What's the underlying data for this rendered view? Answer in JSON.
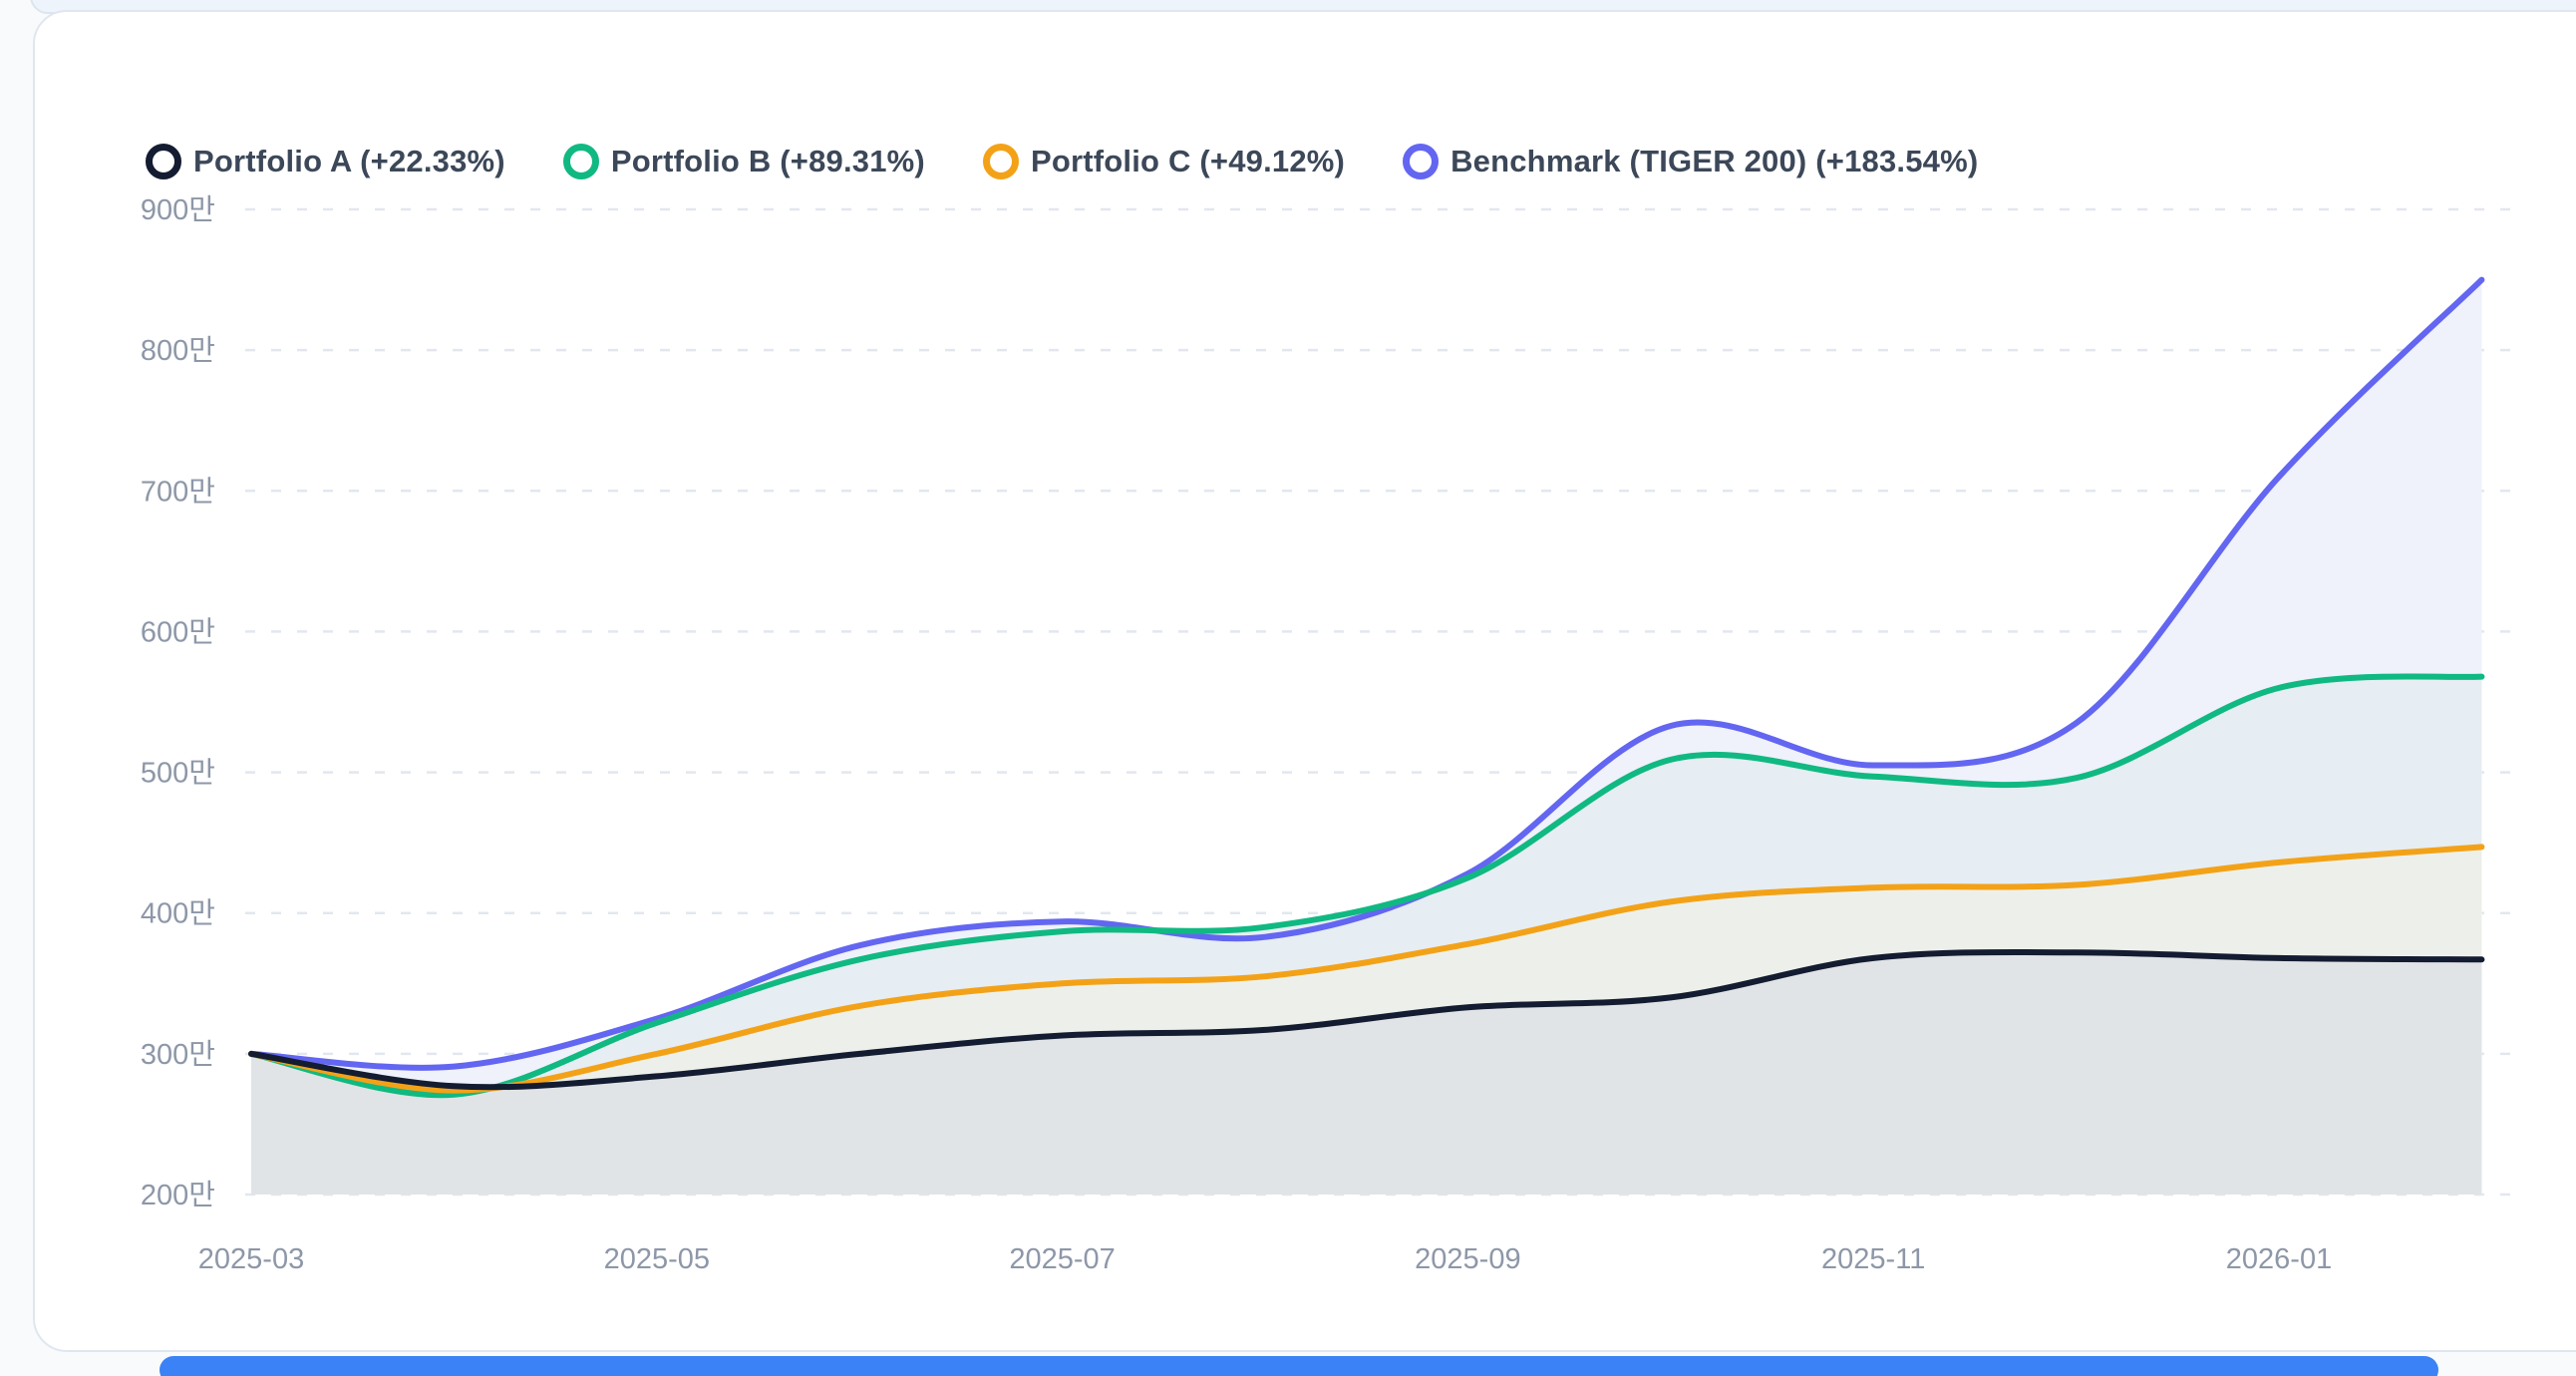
{
  "page": {
    "background": "#f9fafc",
    "card_background": "#ffffff",
    "card_border": "#e0e6f0",
    "top_strip_background": "#eef4fb",
    "bottom_bar_color": "#3b82f6",
    "gridline_color": "#e2e7ef",
    "tick_label_color": "#8d97a8"
  },
  "legend": {
    "position": "top-left",
    "items": [
      {
        "label": "Portfolio A (+22.33%)",
        "color": "#131c31"
      },
      {
        "label": "Portfolio B (+89.31%)",
        "color": "#10b981"
      },
      {
        "label": "Portfolio C (+49.12%)",
        "color": "#f3a218"
      },
      {
        "label": "Benchmark (TIGER 200) (+183.54%)",
        "color": "#6366f1"
      }
    ]
  },
  "chart_data": {
    "type": "area",
    "title": "",
    "xlabel": "",
    "ylabel": "",
    "unit": "만",
    "grid": "horizontal-dashed",
    "legend_position": "top-left",
    "ylim": [
      200,
      900
    ],
    "x": [
      "2025-03",
      "2025-04",
      "2025-05",
      "2025-06",
      "2025-07",
      "2025-08",
      "2025-09",
      "2025-10",
      "2025-11",
      "2025-12",
      "2026-01",
      "2026-02"
    ],
    "x_tick_labels": [
      "2025-03",
      "2025-05",
      "2025-07",
      "2025-09",
      "2025-11",
      "2026-01"
    ],
    "y_ticks": [
      {
        "value": 200,
        "label": "200만"
      },
      {
        "value": 300,
        "label": "300만"
      },
      {
        "value": 400,
        "label": "400만"
      },
      {
        "value": 500,
        "label": "500만"
      },
      {
        "value": 600,
        "label": "600만"
      },
      {
        "value": 700,
        "label": "700만"
      },
      {
        "value": 800,
        "label": "800만"
      },
      {
        "value": 900,
        "label": "900만"
      }
    ],
    "series": [
      {
        "name": "Portfolio A",
        "return_pct": "+22.33%",
        "color": "#131c31",
        "fill": "#e1e4e6",
        "values": [
          300,
          277,
          284,
          300,
          313,
          317,
          333,
          340,
          368,
          372,
          368,
          367
        ]
      },
      {
        "name": "Portfolio B",
        "return_pct": "+89.31%",
        "color": "#10b981",
        "fill": "#e6edf3",
        "values": [
          300,
          271,
          322,
          367,
          387,
          390,
          425,
          509,
          497,
          496,
          560,
          568
        ]
      },
      {
        "name": "Portfolio C",
        "return_pct": "+49.12%",
        "color": "#f3a218",
        "fill": "#edf0ea",
        "values": [
          300,
          274,
          300,
          334,
          350,
          355,
          378,
          408,
          418,
          420,
          436,
          447
        ]
      },
      {
        "name": "Benchmark (TIGER 200)",
        "return_pct": "+183.54%",
        "color": "#6366f1",
        "fill": "#eff1fb",
        "values": [
          300,
          291,
          325,
          377,
          394,
          383,
          428,
          533,
          505,
          535,
          710,
          850
        ]
      }
    ]
  }
}
